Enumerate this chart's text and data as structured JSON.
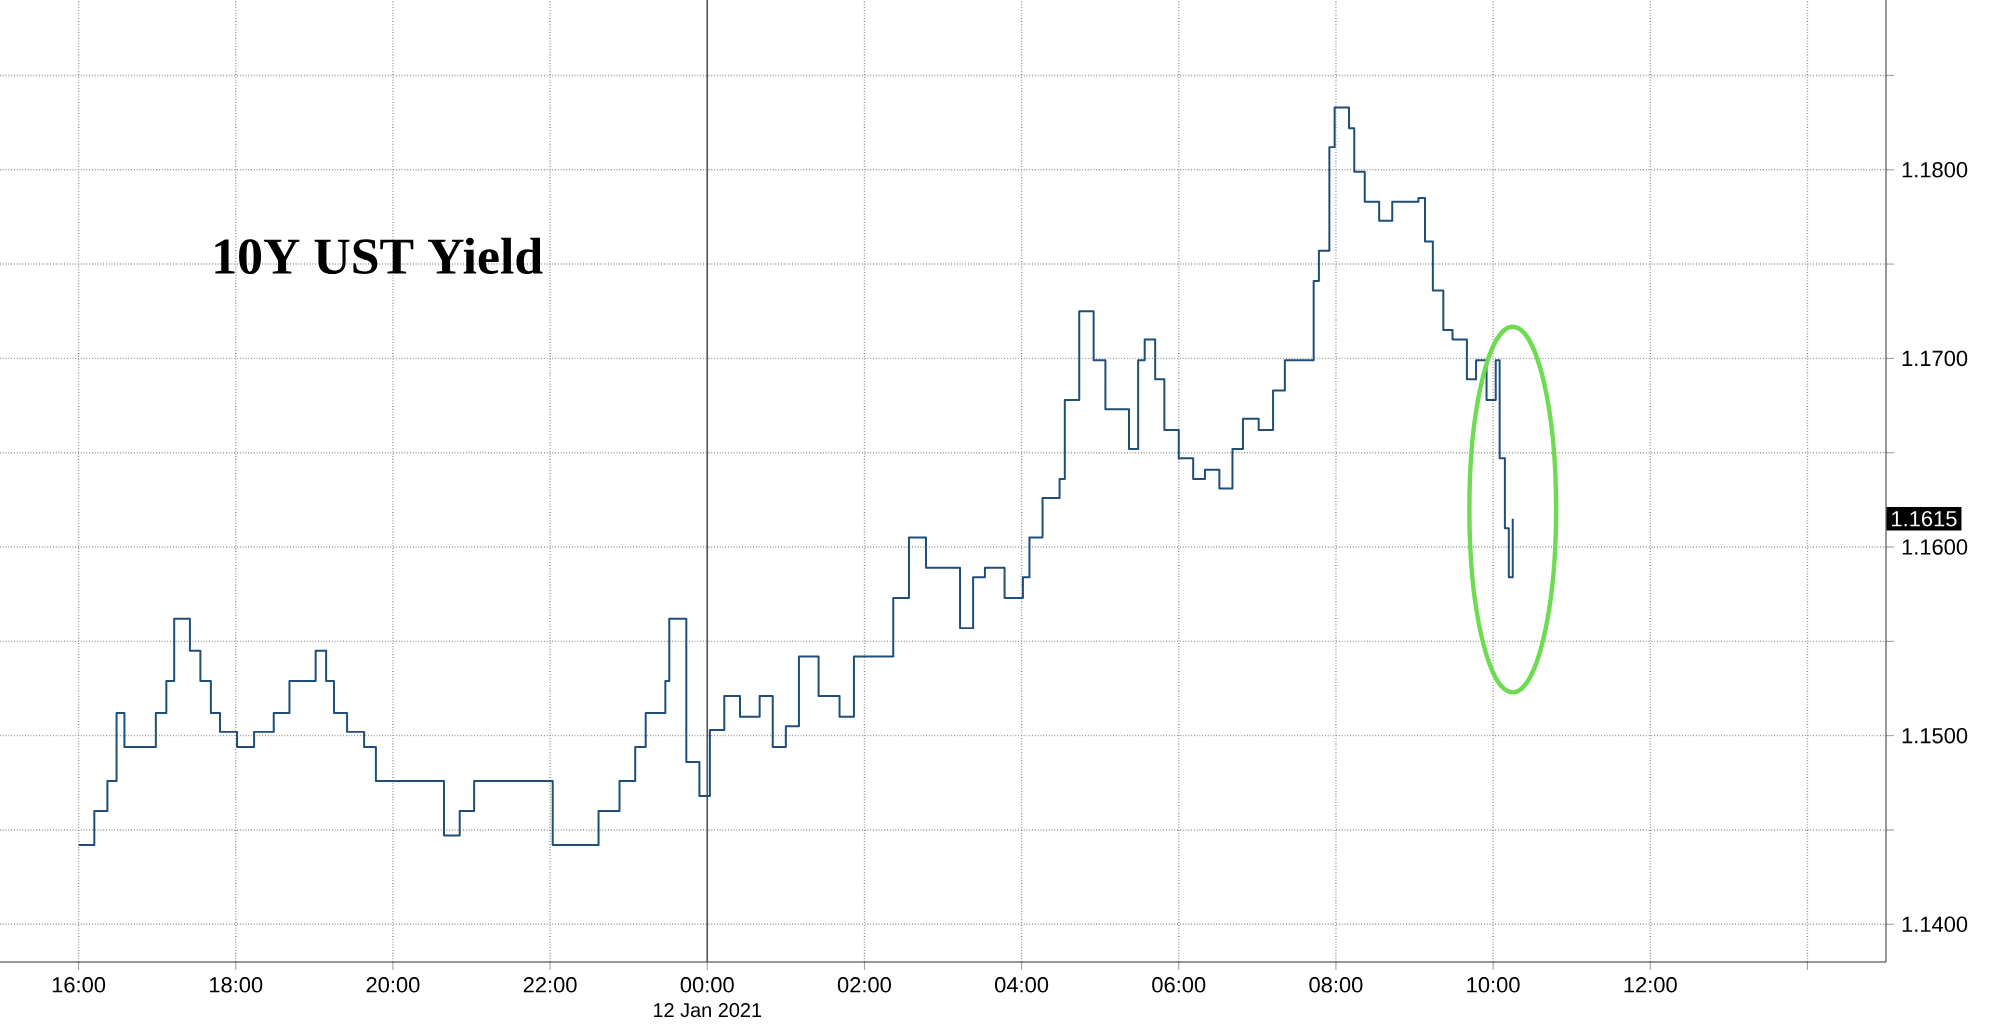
{
  "chart_data": {
    "type": "step",
    "title": "10Y UST Yield",
    "x": [
      "2021-01-11T16:00",
      "2021-01-11T16:12",
      "2021-01-11T16:22",
      "2021-01-11T16:29",
      "2021-01-11T16:35",
      "2021-01-11T16:52",
      "2021-01-11T16:59",
      "2021-01-11T17:07",
      "2021-01-11T17:13",
      "2021-01-11T17:25",
      "2021-01-11T17:33",
      "2021-01-11T17:41",
      "2021-01-11T17:48",
      "2021-01-11T18:01",
      "2021-01-11T18:14",
      "2021-01-11T18:29",
      "2021-01-11T18:41",
      "2021-01-11T19:01",
      "2021-01-11T19:09",
      "2021-01-11T19:15",
      "2021-01-11T19:25",
      "2021-01-11T19:38",
      "2021-01-11T19:47",
      "2021-01-11T20:05",
      "2021-01-11T20:25",
      "2021-01-11T20:39",
      "2021-01-11T20:51",
      "2021-01-11T21:02",
      "2021-01-11T21:22",
      "2021-01-11T21:41",
      "2021-01-11T22:02",
      "2021-01-11T22:27",
      "2021-01-11T22:37",
      "2021-01-11T22:53",
      "2021-01-11T23:05",
      "2021-01-11T23:13",
      "2021-01-11T23:28",
      "2021-01-11T23:31",
      "2021-01-11T23:44",
      "2021-01-11T23:54",
      "2021-01-12T00:02",
      "2021-01-12T00:13",
      "2021-01-12T00:25",
      "2021-01-12T00:40",
      "2021-01-12T00:50",
      "2021-01-12T01:00",
      "2021-01-12T01:10",
      "2021-01-12T01:25",
      "2021-01-12T01:41",
      "2021-01-12T01:52",
      "2021-01-12T02:07",
      "2021-01-12T02:22",
      "2021-01-12T02:34",
      "2021-01-12T02:47",
      "2021-01-12T03:00",
      "2021-01-12T03:13",
      "2021-01-12T03:23",
      "2021-01-12T03:32",
      "2021-01-12T03:47",
      "2021-01-12T04:01",
      "2021-01-12T04:06",
      "2021-01-12T04:16",
      "2021-01-12T04:29",
      "2021-01-12T04:33",
      "2021-01-12T04:44",
      "2021-01-12T04:55",
      "2021-01-12T05:04",
      "2021-01-12T05:14",
      "2021-01-12T05:22",
      "2021-01-12T05:29",
      "2021-01-12T05:34",
      "2021-01-12T05:42",
      "2021-01-12T05:49",
      "2021-01-12T06:00",
      "2021-01-12T06:11",
      "2021-01-12T06:20",
      "2021-01-12T06:31",
      "2021-01-12T06:41",
      "2021-01-12T06:49",
      "2021-01-12T07:01",
      "2021-01-12T07:12",
      "2021-01-12T07:21",
      "2021-01-12T07:35",
      "2021-01-12T07:43",
      "2021-01-12T07:47",
      "2021-01-12T07:55",
      "2021-01-12T07:59",
      "2021-01-12T08:10",
      "2021-01-12T08:14",
      "2021-01-12T08:22",
      "2021-01-12T08:33",
      "2021-01-12T08:43",
      "2021-01-12T08:55",
      "2021-01-12T09:03",
      "2021-01-12T09:08",
      "2021-01-12T09:14",
      "2021-01-12T09:22",
      "2021-01-12T09:29",
      "2021-01-12T09:40",
      "2021-01-12T09:47",
      "2021-01-12T09:55",
      "2021-01-12T10:02",
      "2021-01-12T10:05",
      "2021-01-12T10:09",
      "2021-01-12T10:12",
      "2021-01-12T10:15"
    ],
    "series": [
      {
        "color": "#1f4e79",
        "values": [
          1.1442,
          1.146,
          1.1476,
          1.1512,
          1.1494,
          1.1494,
          1.1512,
          1.1529,
          1.1562,
          1.1545,
          1.1529,
          1.1512,
          1.1502,
          1.1494,
          1.1502,
          1.1512,
          1.1529,
          1.1545,
          1.1529,
          1.1512,
          1.1502,
          1.1494,
          1.1476,
          1.1476,
          1.1476,
          1.1447,
          1.146,
          1.1476,
          1.1476,
          1.1476,
          1.1442,
          1.1442,
          1.146,
          1.1476,
          1.1494,
          1.1512,
          1.1529,
          1.1562,
          1.1486,
          1.1468,
          1.1503,
          1.1521,
          1.151,
          1.1521,
          1.1494,
          1.1505,
          1.1542,
          1.1521,
          1.151,
          1.1542,
          1.1542,
          1.1573,
          1.1605,
          1.1589,
          1.1589,
          1.1557,
          1.1584,
          1.1589,
          1.1573,
          1.1584,
          1.1605,
          1.1626,
          1.1636,
          1.1678,
          1.1725,
          1.1699,
          1.1673,
          1.1673,
          1.1652,
          1.1699,
          1.171,
          1.1689,
          1.1662,
          1.1647,
          1.1636,
          1.1641,
          1.1631,
          1.1652,
          1.1668,
          1.1662,
          1.1683,
          1.1699,
          1.1699,
          1.1741,
          1.1757,
          1.1812,
          1.1833,
          1.1822,
          1.1799,
          1.1783,
          1.1773,
          1.1783,
          1.1783,
          1.1785,
          1.1762,
          1.1736,
          1.1715,
          1.171,
          1.1689,
          1.1699,
          1.1678,
          1.1699,
          1.1647,
          1.161,
          1.1584,
          1.1615
        ]
      }
    ],
    "xlim": [
      "2021-01-11T15:00",
      "2021-01-12T15:00"
    ],
    "ylim": [
      1.138,
      1.189
    ],
    "xticks": [
      {
        "value": "2021-01-11T16:00",
        "label": "16:00"
      },
      {
        "value": "2021-01-11T18:00",
        "label": "18:00"
      },
      {
        "value": "2021-01-11T20:00",
        "label": "20:00"
      },
      {
        "value": "2021-01-11T22:00",
        "label": "22:00"
      },
      {
        "value": "2021-01-12T00:00",
        "label": "00:00"
      },
      {
        "value": "2021-01-12T02:00",
        "label": "02:00"
      },
      {
        "value": "2021-01-12T04:00",
        "label": "04:00"
      },
      {
        "value": "2021-01-12T06:00",
        "label": "06:00"
      },
      {
        "value": "2021-01-12T08:00",
        "label": "08:00"
      },
      {
        "value": "2021-01-12T10:00",
        "label": "10:00"
      },
      {
        "value": "2021-01-12T12:00",
        "label": "12:00"
      },
      {
        "value": "2021-01-12T14:00",
        "label": null
      }
    ],
    "yticks": [
      {
        "value": 1.14,
        "label": "1.1400"
      },
      {
        "value": 1.145,
        "label": null
      },
      {
        "value": 1.15,
        "label": "1.1500"
      },
      {
        "value": 1.155,
        "label": null
      },
      {
        "value": 1.16,
        "label": "1.1600"
      },
      {
        "value": 1.165,
        "label": null
      },
      {
        "value": 1.17,
        "label": "1.1700"
      },
      {
        "value": 1.175,
        "label": null
      },
      {
        "value": 1.18,
        "label": "1.1800"
      },
      {
        "value": 1.185,
        "label": null
      }
    ],
    "ref_lines": [
      {
        "axis": "x",
        "value": "2021-01-12T00:00",
        "color": "#555555"
      }
    ],
    "annotations": [
      "1.1615",
      "12 Jan 2021"
    ],
    "grid": true,
    "marker": "none",
    "line_style": "solid"
  }
}
